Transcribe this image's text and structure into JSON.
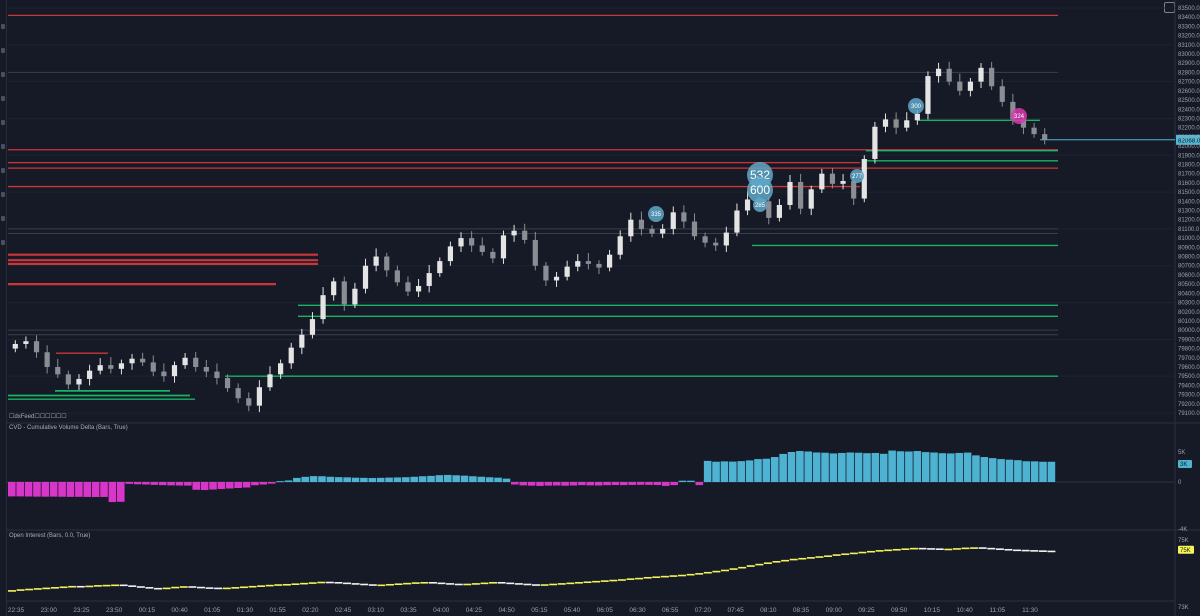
{
  "price_pane": {
    "feed_label": "☐dxFeed☐☐☐☐☐☐",
    "price_ticks": [
      "83500.0",
      "83400.0",
      "83300.0",
      "83200.0",
      "83100.0",
      "83000.0",
      "82900.0",
      "82800.0",
      "82700.0",
      "82600.0",
      "82500.0",
      "82400.0",
      "82300.0",
      "82200.0",
      "82100.0",
      "82000.0",
      "81900.0",
      "81800.0",
      "81700.0",
      "81600.0",
      "81500.0",
      "81400.0",
      "81300.0",
      "81200.0",
      "81100.0",
      "81000.0",
      "80900.0",
      "80800.0",
      "80700.0",
      "80600.0",
      "80500.0",
      "80400.0",
      "80300.0",
      "80200.0",
      "80100.0",
      "80000.0",
      "79900.0",
      "79800.0",
      "79700.0",
      "79600.0",
      "79500.0",
      "79400.0",
      "79300.0",
      "79200.0",
      "79100.0"
    ],
    "current_price": "82068.0",
    "bubbles": [
      {
        "label": "335",
        "big": false
      },
      {
        "label": "285",
        "big": false
      },
      {
        "label": "532",
        "big": true
      },
      {
        "label": "600",
        "big": true
      },
      {
        "label": "277",
        "big": false
      },
      {
        "label": "300",
        "big": false
      },
      {
        "label": "324",
        "big": false
      }
    ],
    "colors": {
      "background": "#151a26",
      "bull": "#e4e4e4",
      "bear": "#8a8d93",
      "resistance": "#e03a3a",
      "support": "#19c46e",
      "last_price": "#4fb8d8",
      "bubble": "#5fa8c8",
      "bubble_pink": "#d93ab0"
    }
  },
  "cvd_pane": {
    "title": "CVD - Cumulative Volume Delta (Bars, True)",
    "ticks": {
      "top": "5K",
      "zero": "0",
      "bottom": "-4K"
    },
    "badge": "3K",
    "colors": {
      "positive": "#4eb3d3",
      "negative": "#d935c8"
    }
  },
  "oi_pane": {
    "title": "Open Interest (Bars, 0.0, True)",
    "ticks": {
      "top": "75K",
      "bottom": "73K"
    },
    "badge": "75K",
    "colors": {
      "rising": "#f4f45a",
      "falling": "#f2f2f2"
    }
  },
  "time_axis": [
    "22:35",
    "23:00",
    "23:25",
    "23:50",
    "00:15",
    "00:40",
    "01:05",
    "01:30",
    "01:55",
    "02:20",
    "02:45",
    "03:10",
    "03:35",
    "04:00",
    "04:25",
    "04:50",
    "05:15",
    "05:40",
    "06:05",
    "06:30",
    "06:55",
    "07:20",
    "07:45",
    "08:10",
    "08:35",
    "09:00",
    "09:25",
    "09:50",
    "10:15",
    "10:40",
    "11:05",
    "11:30"
  ],
  "chart_data": [
    {
      "type": "candlestick",
      "title": "",
      "ylim": [
        79100,
        83500
      ],
      "closes": [
        79850,
        79880,
        79760,
        79600,
        79520,
        79410,
        79470,
        79560,
        79620,
        79580,
        79640,
        79690,
        79650,
        79550,
        79500,
        79620,
        79700,
        79600,
        79550,
        79480,
        79370,
        79260,
        79180,
        79380,
        79520,
        79640,
        79810,
        79950,
        80120,
        80380,
        80530,
        80280,
        80450,
        80700,
        80800,
        80650,
        80520,
        80420,
        80480,
        80620,
        80750,
        80910,
        81000,
        80920,
        80850,
        80780,
        81030,
        81080,
        80980,
        80700,
        80540,
        80580,
        80690,
        80750,
        80720,
        80680,
        80820,
        81020,
        81200,
        81100,
        81050,
        81100,
        81280,
        81180,
        81020,
        80950,
        80920,
        81060,
        81300,
        81420,
        81400,
        81220,
        81360,
        81610,
        81320,
        81530,
        81700,
        81590,
        81620,
        81430,
        81860,
        82210,
        82290,
        82200,
        82280,
        82350,
        82760,
        82840,
        82700,
        82600,
        82700,
        82850,
        82650,
        82480,
        82290,
        82200,
        82130,
        82068
      ],
      "levels_resistance": [
        83420,
        81960,
        81820,
        81760,
        81560,
        80820,
        80760,
        80720,
        80500,
        79750
      ],
      "levels_support": [
        80270,
        80150,
        79500,
        79340,
        79290,
        79250,
        80920,
        81840,
        81950,
        82280
      ]
    },
    {
      "type": "bar",
      "title": "CVD - Cumulative Volume Delta (Bars, True)",
      "ylim": [
        -4000,
        5000
      ],
      "values": [
        -2400,
        -2400,
        -2420,
        -2440,
        -2450,
        -2440,
        -2460,
        -2480,
        -2470,
        -2490,
        -2500,
        -2490,
        -3340,
        -3300,
        -310,
        -380,
        -420,
        -480,
        -520,
        -560,
        -580,
        -600,
        -1300,
        -1340,
        -1250,
        -1160,
        -1080,
        -1000,
        -920,
        -540,
        -420,
        -280,
        140,
        260,
        680,
        860,
        980,
        960,
        870,
        810,
        780,
        720,
        690,
        660,
        690,
        730,
        760,
        800,
        870,
        960,
        1020,
        1140,
        1180,
        1120,
        1060,
        960,
        880,
        790,
        720,
        560,
        -420,
        -560,
        -610,
        -650,
        -600,
        -580,
        -620,
        -580,
        -520,
        -560,
        -580,
        -530,
        -500,
        -520,
        -490,
        -470,
        -480,
        -500,
        -650,
        -520,
        220,
        220,
        -520,
        3520,
        3380,
        3440,
        3400,
        3480,
        3600,
        3820,
        3880,
        4160,
        4680,
        5000,
        5160,
        5080,
        4920,
        4880,
        4760,
        4840,
        4920,
        4880,
        4800,
        4840,
        4700,
        5240,
        5120,
        5080,
        5160,
        4980,
        4920,
        4800,
        4760,
        4840,
        4900,
        4440,
        4160,
        3980,
        3820,
        3720,
        3640,
        3460,
        3440,
        3380,
        3380
      ]
    },
    {
      "type": "bar",
      "title": "Open Interest (Bars, 0.0, True)",
      "ylim": [
        73000,
        75000
      ],
      "values": [
        73210,
        73240,
        73260,
        73280,
        73300,
        73320,
        73340,
        73360,
        73350,
        73370,
        73390,
        73400,
        73410,
        73380,
        73350,
        73320,
        73290,
        73270,
        73300,
        73330,
        73350,
        73330,
        73310,
        73300,
        73290,
        73300,
        73320,
        73340,
        73360,
        73380,
        73400,
        73420,
        73430,
        73450,
        73470,
        73490,
        73510,
        73500,
        73480,
        73460,
        73440,
        73420,
        73400,
        73410,
        73430,
        73450,
        73470,
        73490,
        73500,
        73480,
        73460,
        73440,
        73430,
        73440,
        73460,
        73480,
        73500,
        73480,
        73460,
        73440,
        73420,
        73400,
        73420,
        73440,
        73460,
        73480,
        73500,
        73520,
        73540,
        73560,
        73580,
        73600,
        73630,
        73650,
        73680,
        73700,
        73720,
        73740,
        73760,
        73790,
        73820,
        73860,
        73900,
        73940,
        73990,
        74040,
        74100,
        74150,
        74200,
        74250,
        74290,
        74330,
        74360,
        74390,
        74420,
        74450,
        74490,
        74520,
        74550,
        74580,
        74610,
        74640,
        74660,
        74680,
        74700,
        74720,
        74710,
        74700,
        74680,
        74690,
        74710,
        74730,
        74740,
        74720,
        74700,
        74680,
        74660,
        74650,
        74640,
        74630,
        74620,
        74600
      ]
    }
  ]
}
